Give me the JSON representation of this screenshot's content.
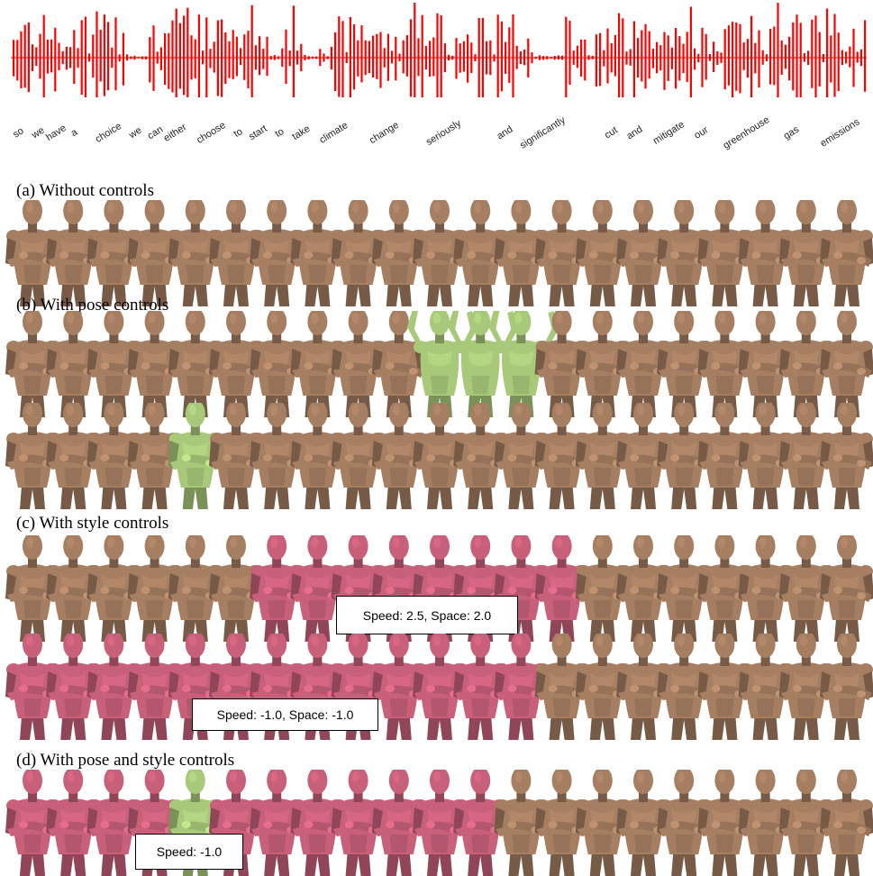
{
  "waveform": {
    "color": "#ff0000",
    "words": [
      "so",
      "we",
      "have",
      "a",
      "choice",
      "we",
      "can",
      "either",
      "choose",
      "to",
      "start",
      "to",
      "take",
      "climate",
      "change",
      "seriously",
      "and",
      "significantly",
      "cut",
      "and",
      "mitigate",
      "our",
      "greenhouse",
      "gas",
      "emissions"
    ]
  },
  "sections": [
    {
      "label": "(a) Without controls"
    },
    {
      "label": "(b) With pose controls"
    },
    {
      "label": "(c) With style controls"
    },
    {
      "label": "(d) With pose and style controls"
    }
  ],
  "callouts": {
    "c_row1": "Speed: 2.5, Space: 2.0",
    "c_row2": "Speed: -1.0, Space: -1.0",
    "d_row1": "Speed: -1.0"
  },
  "colors": {
    "skin_default": "#a67f62",
    "skin_pose": "#a9c97a",
    "skin_style": "#c8607a"
  },
  "strips": [
    {
      "id": "a1",
      "kinds": [
        "d",
        "d",
        "d",
        "d",
        "d",
        "d",
        "d",
        "d",
        "d",
        "d",
        "d",
        "d",
        "d",
        "d",
        "d",
        "d",
        "d",
        "d",
        "d",
        "d",
        "d"
      ]
    },
    {
      "id": "b1",
      "kinds": [
        "d",
        "d",
        "d",
        "d",
        "d",
        "d",
        "d",
        "d",
        "d",
        "d",
        "p",
        "p",
        "p",
        "d",
        "d",
        "d",
        "d",
        "d",
        "d",
        "d",
        "d"
      ]
    },
    {
      "id": "b2",
      "kinds": [
        "d",
        "d",
        "d",
        "d",
        "p",
        "d",
        "d",
        "d",
        "d",
        "d",
        "d",
        "d",
        "d",
        "d",
        "d",
        "d",
        "d",
        "d",
        "d",
        "d",
        "d"
      ]
    },
    {
      "id": "c1",
      "kinds": [
        "d",
        "d",
        "d",
        "d",
        "d",
        "d",
        "s",
        "s",
        "s",
        "s",
        "s",
        "s",
        "s",
        "s",
        "d",
        "d",
        "d",
        "d",
        "d",
        "d",
        "d"
      ]
    },
    {
      "id": "c2",
      "kinds": [
        "s",
        "s",
        "s",
        "s",
        "s",
        "s",
        "s",
        "s",
        "s",
        "s",
        "s",
        "s",
        "s",
        "d",
        "d",
        "d",
        "d",
        "d",
        "d",
        "d",
        "d"
      ]
    },
    {
      "id": "d1",
      "kinds": [
        "s",
        "s",
        "s",
        "s",
        "p",
        "s",
        "s",
        "s",
        "s",
        "s",
        "s",
        "s",
        "d",
        "d",
        "d",
        "d",
        "d",
        "d",
        "d",
        "d",
        "d"
      ]
    }
  ]
}
